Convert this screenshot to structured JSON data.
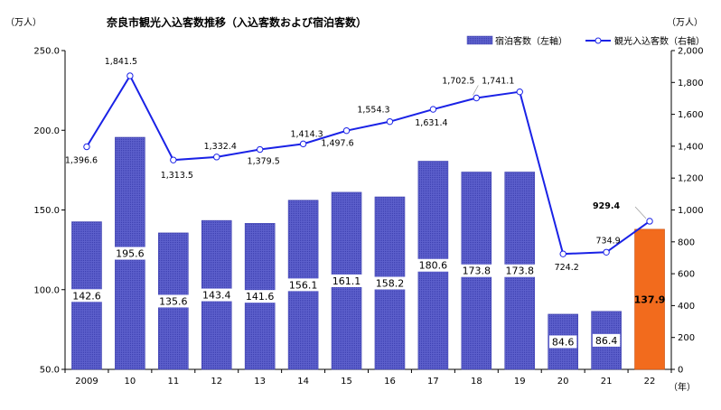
{
  "chart_data": {
    "type": "bar+line",
    "title": "奈良市観光入込客数推移（入込客数および宿泊客数）",
    "left_unit": "（万人）",
    "right_unit": "（万人）",
    "x_unit": "（年）",
    "categories": [
      "2009",
      "10",
      "11",
      "12",
      "13",
      "14",
      "15",
      "16",
      "17",
      "18",
      "19",
      "20",
      "21",
      "22"
    ],
    "left_axis": {
      "min": 50,
      "max": 250,
      "step": 50,
      "tick_labels": [
        "50.0",
        "100.0",
        "150.0",
        "200.0",
        "250.0"
      ]
    },
    "right_axis": {
      "min": 0,
      "max": 2000,
      "step": 200,
      "tick_labels": [
        "0",
        "200",
        "400",
        "600",
        "800",
        "1,000",
        "1,200",
        "1,400",
        "1,600",
        "1,800",
        "2,000"
      ]
    },
    "series": [
      {
        "name": "宿泊客数（左軸）",
        "type": "bar",
        "axis": "left",
        "values": [
          142.6,
          195.6,
          135.6,
          143.4,
          141.6,
          156.1,
          161.1,
          158.2,
          180.6,
          173.8,
          173.8,
          84.6,
          86.4,
          137.9
        ],
        "labels": [
          "142.6",
          "195.6",
          "135.6",
          "143.4",
          "141.6",
          "156.1",
          "161.1",
          "158.2",
          "180.6",
          "173.8",
          "173.8",
          "84.6",
          "86.4",
          "137.9"
        ],
        "color": "#5558c8",
        "highlight_color": "#f26b1d",
        "highlight_index": 13
      },
      {
        "name": "観光入込客数（右軸）",
        "type": "line",
        "axis": "right",
        "values": [
          1396.6,
          1841.5,
          1313.5,
          1332.4,
          1379.5,
          1414.3,
          1497.6,
          1554.3,
          1631.4,
          1702.5,
          1741.1,
          724.2,
          734.9,
          929.4
        ],
        "labels": [
          "1,396.6",
          "1,841.5",
          "1,313.5",
          "1,332.4",
          "1,379.5",
          "1,414.3",
          "1,497.6",
          "1,554.3",
          "1,631.4",
          "1,702.5",
          "1,741.1",
          "724.2",
          "734.9",
          "929.4"
        ],
        "color": "#1a22e6"
      }
    ],
    "legend_placement": "top-right"
  }
}
